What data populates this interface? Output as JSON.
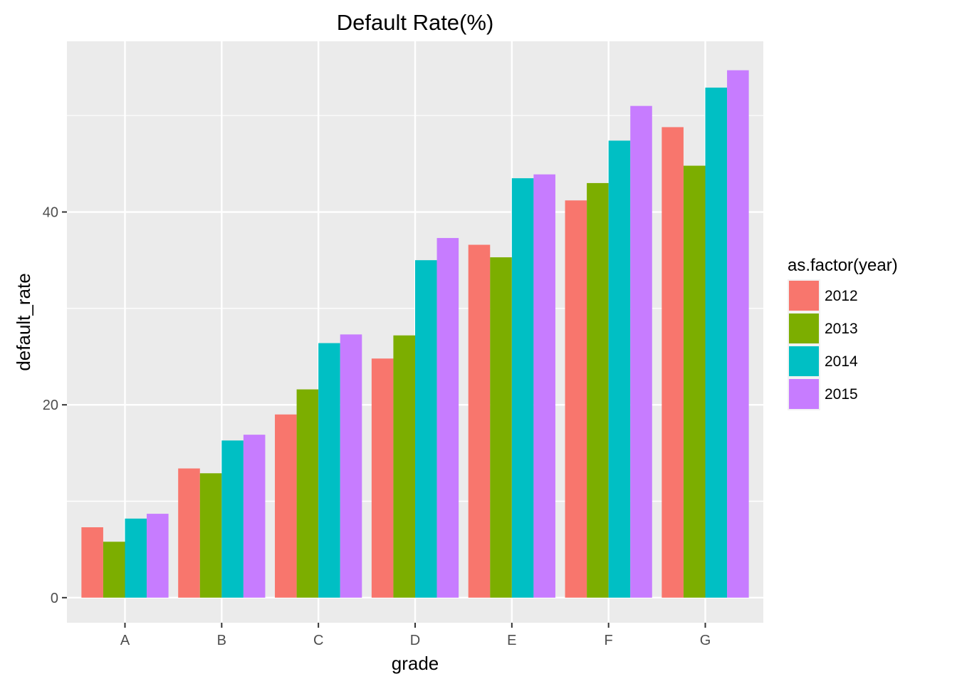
{
  "chart_data": {
    "type": "bar",
    "title": "Default Rate(%)",
    "xlabel": "grade",
    "ylabel": "default_rate",
    "categories": [
      "A",
      "B",
      "C",
      "D",
      "E",
      "F",
      "G"
    ],
    "yticks": [
      0,
      20,
      40
    ],
    "ylim": [
      -2.6,
      57.7
    ],
    "grid": true,
    "legend": {
      "title": "as.factor(year)",
      "position": "right"
    },
    "series": [
      {
        "name": "2012",
        "color": "#F8766D",
        "values": [
          7.3,
          13.4,
          19.0,
          24.8,
          36.6,
          41.2,
          48.8
        ]
      },
      {
        "name": "2013",
        "color": "#7CAE00",
        "values": [
          5.8,
          12.9,
          21.6,
          27.2,
          35.3,
          43.0,
          44.8
        ]
      },
      {
        "name": "2014",
        "color": "#00BFC4",
        "values": [
          8.2,
          16.3,
          26.4,
          35.0,
          43.5,
          47.4,
          52.9
        ]
      },
      {
        "name": "2015",
        "color": "#C77CFF",
        "values": [
          8.7,
          16.9,
          27.3,
          37.3,
          43.9,
          51.0,
          54.7
        ]
      }
    ]
  }
}
